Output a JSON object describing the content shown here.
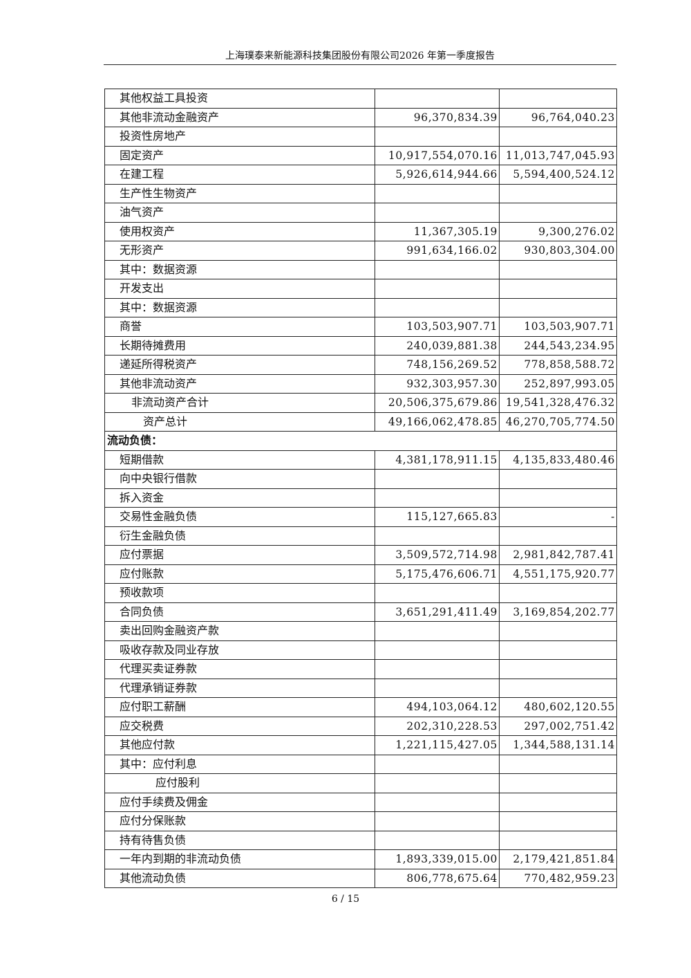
{
  "header": {
    "title": "上海璞泰来新能源科技集团股份有限公司2026 年第一季度报告"
  },
  "rows": [
    {
      "label": "其他权益工具投资",
      "current": "",
      "prior": ""
    },
    {
      "label": "其他非流动金融资产",
      "current": "96,370,834.39",
      "prior": "96,764,040.23"
    },
    {
      "label": "投资性房地产",
      "current": "",
      "prior": ""
    },
    {
      "label": "固定资产",
      "current": "10,917,554,070.16",
      "prior": "11,013,747,045.93"
    },
    {
      "label": "在建工程",
      "current": "5,926,614,944.66",
      "prior": "5,594,400,524.12"
    },
    {
      "label": "生产性生物资产",
      "current": "",
      "prior": ""
    },
    {
      "label": "油气资产",
      "current": "",
      "prior": ""
    },
    {
      "label": "使用权资产",
      "current": "11,367,305.19",
      "prior": "9,300,276.02"
    },
    {
      "label": "无形资产",
      "current": "991,634,166.02",
      "prior": "930,803,304.00"
    },
    {
      "label": "其中：数据资源",
      "current": "",
      "prior": ""
    },
    {
      "label": "开发支出",
      "current": "",
      "prior": ""
    },
    {
      "label": "其中：数据资源",
      "current": "",
      "prior": ""
    },
    {
      "label": "商誉",
      "current": "103,503,907.71",
      "prior": "103,503,907.71"
    },
    {
      "label": "长期待摊费用",
      "current": "240,039,881.38",
      "prior": "244,543,234.95"
    },
    {
      "label": "递延所得税资产",
      "current": "748,156,269.52",
      "prior": "778,858,588.72"
    },
    {
      "label": "其他非流动资产",
      "current": "932,303,957.30",
      "prior": "252,897,993.05"
    },
    {
      "label": "非流动资产合计",
      "current": "20,506,375,679.86",
      "prior": "19,541,328,476.32",
      "indent": 1
    },
    {
      "label": "资产总计",
      "current": "49,166,062,478.85",
      "prior": "46,270,705,774.50",
      "indent": 2
    },
    {
      "label": "流动负债：",
      "section": true
    },
    {
      "label": "短期借款",
      "current": "4,381,178,911.15",
      "prior": "4,135,833,480.46"
    },
    {
      "label": "向中央银行借款",
      "current": "",
      "prior": ""
    },
    {
      "label": "拆入资金",
      "current": "",
      "prior": ""
    },
    {
      "label": "交易性金融负债",
      "current": "115,127,665.83",
      "prior": "-"
    },
    {
      "label": "衍生金融负债",
      "current": "",
      "prior": ""
    },
    {
      "label": "应付票据",
      "current": "3,509,572,714.98",
      "prior": "2,981,842,787.41"
    },
    {
      "label": "应付账款",
      "current": "5,175,476,606.71",
      "prior": "4,551,175,920.77"
    },
    {
      "label": "预收款项",
      "current": "",
      "prior": ""
    },
    {
      "label": "合同负债",
      "current": "3,651,291,411.49",
      "prior": "3,169,854,202.77"
    },
    {
      "label": "卖出回购金融资产款",
      "current": "",
      "prior": ""
    },
    {
      "label": "吸收存款及同业存放",
      "current": "",
      "prior": ""
    },
    {
      "label": "代理买卖证券款",
      "current": "",
      "prior": ""
    },
    {
      "label": "代理承销证券款",
      "current": "",
      "prior": ""
    },
    {
      "label": "应付职工薪酬",
      "current": "494,103,064.12",
      "prior": "480,602,120.55"
    },
    {
      "label": "应交税费",
      "current": "202,310,228.53",
      "prior": "297,002,751.42"
    },
    {
      "label": "其他应付款",
      "current": "1,221,115,427.05",
      "prior": "1,344,588,131.14"
    },
    {
      "label": "其中：应付利息",
      "current": "",
      "prior": ""
    },
    {
      "label": "应付股利",
      "current": "",
      "prior": "",
      "indent": 3
    },
    {
      "label": "应付手续费及佣金",
      "current": "",
      "prior": ""
    },
    {
      "label": "应付分保账款",
      "current": "",
      "prior": ""
    },
    {
      "label": "持有待售负债",
      "current": "",
      "prior": ""
    },
    {
      "label": "一年内到期的非流动负债",
      "current": "1,893,339,015.00",
      "prior": "2,179,421,851.84"
    },
    {
      "label": "其他流动负债",
      "current": "806,778,675.64",
      "prior": "770,482,959.23"
    }
  ],
  "footer": {
    "page": "6 / 15"
  }
}
